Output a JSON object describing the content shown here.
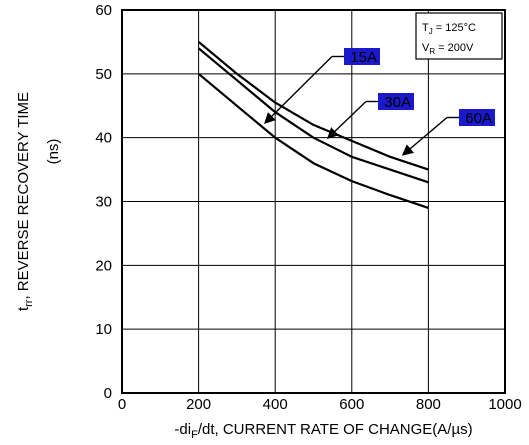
{
  "chart_data": {
    "type": "line",
    "xlabel_prefix": "-di",
    "xlabel_sub": "F",
    "xlabel_rest": "/dt, CURRENT RATE OF CHANGE(A/µs)",
    "ylabel_t": "t",
    "ylabel_sub": "rr",
    "ylabel_rest": ", REVERSE RECOVERY TIME",
    "ylabel_unit": "(ns)",
    "xlim": [
      0,
      1000
    ],
    "ylim": [
      0,
      60
    ],
    "x_ticks": [
      "0",
      "200",
      "400",
      "600",
      "800",
      "1000"
    ],
    "y_ticks": [
      "0",
      "10",
      "20",
      "30",
      "40",
      "50",
      "60"
    ],
    "grid": true,
    "conditions": [
      {
        "main": "T",
        "sub": "J",
        "rest": " = 125°C"
      },
      {
        "main": "V",
        "sub": "R",
        "rest": " = 200V"
      }
    ],
    "series": [
      {
        "name": "15A",
        "x": [
          200,
          300,
          400,
          500,
          600,
          700,
          800
        ],
        "y": [
          50,
          45,
          40,
          36,
          33.2,
          31,
          29
        ]
      },
      {
        "name": "30A",
        "x": [
          200,
          300,
          400,
          500,
          600,
          700,
          800
        ],
        "y": [
          54,
          49,
          44,
          40,
          37,
          35,
          33
        ]
      },
      {
        "name": "60A",
        "x": [
          200,
          300,
          400,
          500,
          600,
          700,
          800
        ],
        "y": [
          55,
          50,
          45.5,
          42,
          39.5,
          37,
          35
        ]
      }
    ],
    "annotations": [
      {
        "series": "15A",
        "color": "#1a1acc"
      },
      {
        "series": "30A",
        "color": "#1a1acc"
      },
      {
        "series": "60A",
        "color": "#1a1acc"
      }
    ]
  }
}
